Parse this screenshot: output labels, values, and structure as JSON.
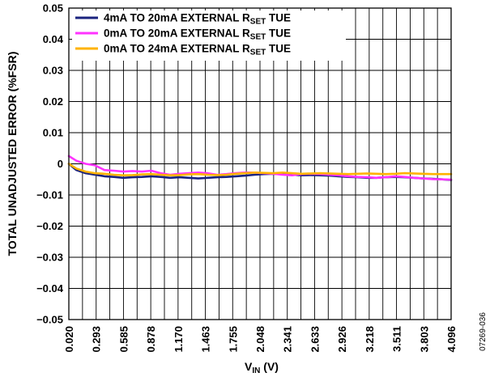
{
  "chart_data": {
    "type": "line",
    "ylabel": "TOTAL UNADJUSTED ERROR (%FSR)",
    "xlabel": {
      "main": "V",
      "sub": "IN",
      "unit": " (V)"
    },
    "ylim": [
      -0.05,
      0.05
    ],
    "yticks": [
      0.05,
      0.04,
      0.03,
      0.02,
      0.01,
      0,
      -0.01,
      -0.02,
      -0.03,
      -0.04,
      -0.05
    ],
    "ytick_labels": [
      "0.05",
      "0.04",
      "0.03",
      "0.02",
      "0.01",
      "0",
      "−0.01",
      "−0.02",
      "−0.03",
      "−0.04",
      "−0.05"
    ],
    "xlim": [
      0.02,
      4.096
    ],
    "xtick_labels": [
      "0.020",
      "0.293",
      "0.585",
      "0.878",
      "1.170",
      "1.463",
      "1.755",
      "2.048",
      "2.341",
      "2.633",
      "2.926",
      "3.218",
      "3.511",
      "3.803",
      "4.096"
    ],
    "grid": true,
    "grid_x_divisions": 28,
    "legend_position": "top-left",
    "series": [
      {
        "legend_label": {
          "pre": "4mA TO 20mA EXTERNAL R",
          "sub": "SET",
          "post": " TUE"
        },
        "color": "#1a237e",
        "x": [
          0.02,
          0.1,
          0.2,
          0.3,
          0.4,
          0.5,
          0.6,
          0.7,
          0.8,
          0.9,
          1.0,
          1.1,
          1.2,
          1.3,
          1.4,
          1.5,
          1.6,
          1.7,
          1.8,
          1.9,
          2.0,
          2.1,
          2.2,
          2.3,
          2.4,
          2.5,
          2.6,
          2.7,
          2.8,
          2.9,
          3.0,
          3.1,
          3.2,
          3.3,
          3.4,
          3.5,
          3.6,
          3.7,
          3.8,
          3.9,
          4.0,
          4.096
        ],
        "y": [
          0.0,
          -0.002,
          -0.003,
          -0.0035,
          -0.004,
          -0.0042,
          -0.0045,
          -0.0043,
          -0.0042,
          -0.004,
          -0.0042,
          -0.0045,
          -0.0043,
          -0.0045,
          -0.0047,
          -0.0045,
          -0.0043,
          -0.0042,
          -0.004,
          -0.0038,
          -0.0035,
          -0.0033,
          -0.0032,
          -0.0033,
          -0.0035,
          -0.0037,
          -0.0036,
          -0.0037,
          -0.0038,
          -0.004,
          -0.0042,
          -0.0043,
          -0.0045,
          -0.0045,
          -0.0043,
          -0.0042,
          -0.0043,
          -0.0045,
          -0.0047,
          -0.0048,
          -0.005,
          -0.0052
        ]
      },
      {
        "legend_label": {
          "pre": "0mA TO 20mA EXTERNAL R",
          "sub": "SET",
          "post": " TUE"
        },
        "color": "#ff33ff",
        "x": [
          0.02,
          0.1,
          0.2,
          0.3,
          0.4,
          0.5,
          0.6,
          0.7,
          0.8,
          0.9,
          1.0,
          1.1,
          1.2,
          1.3,
          1.4,
          1.5,
          1.6,
          1.7,
          1.8,
          1.9,
          2.0,
          2.1,
          2.2,
          2.3,
          2.4,
          2.5,
          2.6,
          2.7,
          2.8,
          2.9,
          3.0,
          3.1,
          3.2,
          3.3,
          3.4,
          3.5,
          3.6,
          3.7,
          3.8,
          3.9,
          4.0,
          4.096
        ],
        "y": [
          0.0025,
          0.001,
          0.0,
          -0.0005,
          -0.002,
          -0.0022,
          -0.0025,
          -0.0023,
          -0.0025,
          -0.0022,
          -0.003,
          -0.0035,
          -0.0032,
          -0.003,
          -0.0028,
          -0.003,
          -0.0035,
          -0.0033,
          -0.003,
          -0.0028,
          -0.0028,
          -0.003,
          -0.0032,
          -0.0035,
          -0.0037,
          -0.0033,
          -0.0032,
          -0.0033,
          -0.0035,
          -0.0037,
          -0.004,
          -0.0042,
          -0.0043,
          -0.0045,
          -0.0043,
          -0.004,
          -0.0042,
          -0.0045,
          -0.0047,
          -0.0049,
          -0.005,
          -0.0051
        ]
      },
      {
        "legend_label": {
          "pre": "0mA TO 24mA EXTERNAL R",
          "sub": "SET",
          "post": " TUE"
        },
        "color": "#ffb300",
        "x": [
          0.02,
          0.1,
          0.2,
          0.3,
          0.4,
          0.5,
          0.6,
          0.7,
          0.8,
          0.9,
          1.0,
          1.1,
          1.2,
          1.3,
          1.4,
          1.5,
          1.6,
          1.7,
          1.8,
          1.9,
          2.0,
          2.1,
          2.2,
          2.3,
          2.4,
          2.5,
          2.6,
          2.7,
          2.8,
          2.9,
          3.0,
          3.1,
          3.2,
          3.3,
          3.4,
          3.5,
          3.6,
          3.7,
          3.8,
          3.9,
          4.0,
          4.096
        ],
        "y": [
          0.0,
          -0.0015,
          -0.0025,
          -0.003,
          -0.0032,
          -0.0035,
          -0.0037,
          -0.0036,
          -0.0034,
          -0.0033,
          -0.0035,
          -0.0037,
          -0.0036,
          -0.0034,
          -0.0033,
          -0.0035,
          -0.0036,
          -0.0035,
          -0.0032,
          -0.003,
          -0.0028,
          -0.0029,
          -0.003,
          -0.0028,
          -0.003,
          -0.0032,
          -0.0031,
          -0.003,
          -0.0031,
          -0.0032,
          -0.0033,
          -0.0032,
          -0.0031,
          -0.0032,
          -0.0033,
          -0.0032,
          -0.003,
          -0.0031,
          -0.0032,
          -0.0033,
          -0.0033,
          -0.0033
        ]
      }
    ]
  },
  "figure_id": "07269-036"
}
